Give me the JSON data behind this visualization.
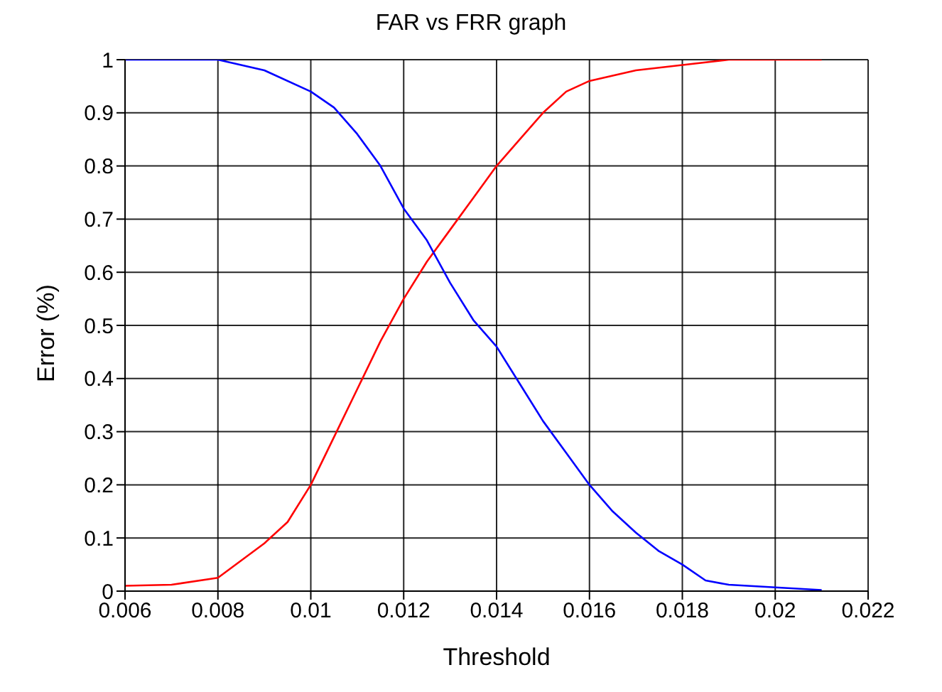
{
  "chart_data": {
    "type": "line",
    "title": "FAR vs FRR graph",
    "xlabel": "Threshold",
    "ylabel": "Error (%)",
    "xlim": [
      0.006,
      0.022
    ],
    "xticks": [
      0.006,
      0.008,
      0.01,
      0.012,
      0.014,
      0.016,
      0.018,
      0.02,
      0.022
    ],
    "ylim": [
      0,
      1
    ],
    "yticks": [
      0,
      0.1,
      0.2,
      0.3,
      0.4,
      0.5,
      0.6,
      0.7,
      0.8,
      0.9,
      1
    ],
    "grid": true,
    "marker": "none",
    "line_style": "solid",
    "series": [
      {
        "color": "#ff0000",
        "x": [
          0.006,
          0.007,
          0.008,
          0.009,
          0.0095,
          0.01,
          0.0105,
          0.011,
          0.0115,
          0.012,
          0.0125,
          0.013,
          0.0135,
          0.014,
          0.0145,
          0.015,
          0.0155,
          0.016,
          0.017,
          0.018,
          0.019,
          0.021
        ],
        "values": [
          0.01,
          0.012,
          0.025,
          0.09,
          0.13,
          0.2,
          0.29,
          0.38,
          0.47,
          0.55,
          0.62,
          0.68,
          0.74,
          0.8,
          0.85,
          0.9,
          0.94,
          0.96,
          0.98,
          0.99,
          1,
          1
        ]
      },
      {
        "color": "#0000ff",
        "x": [
          0.006,
          0.008,
          0.009,
          0.01,
          0.0105,
          0.011,
          0.0115,
          0.012,
          0.0125,
          0.013,
          0.0135,
          0.014,
          0.0145,
          0.015,
          0.0155,
          0.016,
          0.0165,
          0.017,
          0.0175,
          0.018,
          0.0185,
          0.019,
          0.02,
          0.021
        ],
        "values": [
          1,
          1,
          0.98,
          0.94,
          0.91,
          0.86,
          0.8,
          0.72,
          0.66,
          0.58,
          0.51,
          0.46,
          0.39,
          0.32,
          0.26,
          0.2,
          0.15,
          0.11,
          0.075,
          0.05,
          0.02,
          0.012,
          0.007,
          0.002
        ]
      }
    ]
  }
}
